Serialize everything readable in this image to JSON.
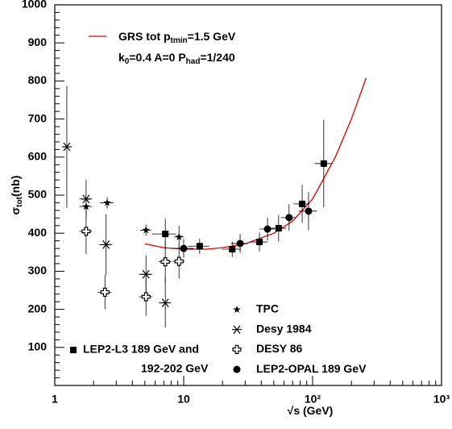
{
  "chart_data": {
    "type": "scatter",
    "x_label_parts": [
      "√s (GeV)"
    ],
    "y_label_parts": [
      "σ",
      "tot",
      "(nb)"
    ],
    "xlim": [
      1,
      1000
    ],
    "ylim": [
      0,
      1000
    ],
    "log_x": true,
    "xticks": [
      {
        "value": 1,
        "label": "1"
      },
      {
        "value": 10,
        "label": "10"
      },
      {
        "value": 100,
        "label": "10²"
      },
      {
        "value": 1000,
        "label": "10³"
      }
    ],
    "yticks": [
      100,
      200,
      300,
      400,
      500,
      600,
      700,
      800,
      900,
      1000
    ],
    "curve": {
      "name_parts": [
        "GRS tot p",
        "tmin",
        "=1.5 GeV"
      ],
      "note_parts": [
        "k",
        "0",
        "=0.4 A=0 P",
        "had",
        "=1/240"
      ],
      "color": "#e00000",
      "x": [
        5,
        7,
        10,
        15,
        20,
        30,
        50,
        70,
        100,
        150,
        200,
        260
      ],
      "values": [
        372,
        362,
        358,
        358,
        362,
        372,
        400,
        432,
        490,
        600,
        700,
        808
      ]
    },
    "series": [
      {
        "name": [
          "TPC"
        ],
        "marker": "star",
        "color": "#000000",
        "x": [
          1.75,
          2.55,
          5.1,
          9.2
        ],
        "values": [
          470,
          480,
          408,
          390
        ],
        "errors": [
          20,
          15,
          15,
          30
        ],
        "xerrors": [
          0.2,
          0.3,
          0.5,
          0.8
        ]
      },
      {
        "name": [
          "Desy 1984"
        ],
        "marker": "asterisk",
        "color": "#000000",
        "x": [
          1.24,
          1.75,
          2.5,
          5.1,
          7.2
        ],
        "values": [
          627,
          490,
          370,
          292,
          217
        ],
        "errors": [
          160,
          50,
          80,
          50,
          65
        ],
        "xerrors": [
          0.1,
          0.2,
          0.3,
          0.6,
          0.8
        ]
      },
      {
        "name": [
          "DESY 86"
        ],
        "marker": "opencross",
        "color": "#000000",
        "x": [
          1.75,
          2.45,
          5.1,
          7.2,
          9.2
        ],
        "values": [
          405,
          245,
          233,
          325,
          326
        ],
        "errors": [
          60,
          45,
          50,
          55,
          45
        ],
        "xerrors": [
          0.2,
          0.3,
          0.6,
          0.8,
          1
        ]
      },
      {
        "name": [
          "LEP2-OPAL 189 GeV"
        ],
        "marker": "circle",
        "color": "#000000",
        "x": [
          10,
          27.4,
          44.7,
          65.7,
          93
        ],
        "values": [
          360,
          373,
          411,
          441,
          458
        ],
        "errors": [
          25,
          25,
          30,
          35,
          50
        ],
        "xerrors": [
          2,
          4,
          6,
          9,
          15
        ]
      },
      {
        "name": [
          "LEP2-L3 189 GeV and",
          "192-202 GeV"
        ],
        "marker": "square",
        "color": "#000000",
        "x": [
          7.2,
          13.3,
          23.8,
          38.7,
          54.5,
          83,
          122
        ],
        "values": [
          398,
          366,
          358,
          377,
          413,
          477,
          583
        ],
        "errors": [
          40,
          20,
          20,
          25,
          35,
          50,
          115
        ],
        "xerrors": [
          1.5,
          2.5,
          4,
          6,
          8,
          12,
          18
        ]
      }
    ]
  }
}
